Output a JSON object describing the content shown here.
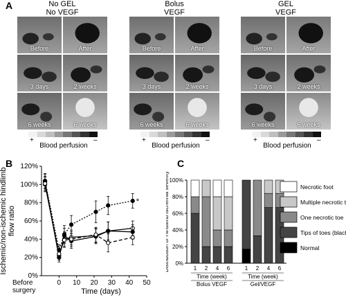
{
  "panel_a": {
    "letter": "A",
    "groups": [
      {
        "title_line1": "No GEL",
        "title_line2": "No VEGF",
        "tiles": [
          "Before",
          "After",
          "3 days",
          "2 weeks",
          "6 weeks",
          "6 weeks"
        ],
        "plus": "+",
        "minus": "–",
        "scale_label": "Blood perfusion"
      },
      {
        "title_line1": "Bolus",
        "title_line2": "VEGF",
        "tiles": [
          "Before",
          "After",
          "3 days",
          "2 weeks",
          "6 weeks",
          "6 weeks"
        ],
        "plus": "+",
        "minus": "–",
        "scale_label": "Blood perfusion"
      },
      {
        "title_line1": "GEL",
        "title_line2": "VEGF",
        "tiles": [
          "Before",
          "After",
          "3 days",
          "2 weeks",
          "6 weeks",
          "6 weeks"
        ],
        "plus": "+",
        "minus": "–",
        "scale_label": "Blood perfusion"
      }
    ],
    "scale_colors": [
      "#f2f2f2",
      "#d9d9d9",
      "#bfbfbf",
      "#9a9a9a",
      "#777777",
      "#555555",
      "#333333",
      "#111111"
    ]
  },
  "chart_data": [
    {
      "type": "line",
      "panel_letter": "B",
      "ylabel_line1": "Ischemic/non-ischemic hindlimb",
      "ylabel_line2": "flow ratio",
      "xlabel": "Time (days)",
      "x_extra_tick_line1": "Before",
      "x_extra_tick_line2": "surgery",
      "xlim": [
        -10,
        50
      ],
      "ylim": [
        0,
        120
      ],
      "x_ticks": [
        0,
        10,
        20,
        30,
        40,
        50
      ],
      "y_ticks": [
        0,
        20,
        40,
        60,
        80,
        100,
        120
      ],
      "y_tick_labels": [
        "0%",
        "20%",
        "40%",
        "60%",
        "80%",
        "100%",
        "120%"
      ],
      "star": "*",
      "series": [
        {
          "style": "dotted-filled",
          "points": [
            [
              -8,
              104
            ],
            [
              0,
              28
            ],
            [
              3,
              45
            ],
            [
              7,
              56
            ],
            [
              21,
              70
            ],
            [
              28,
              77
            ],
            [
              42,
              82
            ]
          ],
          "err": [
            8,
            6,
            10,
            10,
            12,
            10,
            8
          ]
        },
        {
          "style": "solid-open",
          "points": [
            [
              -8,
              100
            ],
            [
              0,
              22
            ],
            [
              3,
              40
            ],
            [
              7,
              42
            ],
            [
              21,
              44
            ],
            [
              28,
              49
            ],
            [
              42,
              52
            ]
          ],
          "err": [
            8,
            5,
            8,
            8,
            8,
            10,
            8
          ]
        },
        {
          "style": "solid-filled",
          "points": [
            [
              -8,
              103
            ],
            [
              0,
              20
            ],
            [
              3,
              44
            ],
            [
              7,
              38
            ],
            [
              21,
              43
            ],
            [
              28,
              49
            ],
            [
              42,
              48
            ]
          ],
          "err": [
            8,
            5,
            8,
            8,
            8,
            10,
            8
          ]
        },
        {
          "style": "dashed-open",
          "points": [
            [
              -8,
              101
            ],
            [
              0,
              24
            ],
            [
              3,
              39
            ],
            [
              7,
              40
            ],
            [
              21,
              45
            ],
            [
              28,
              36
            ],
            [
              42,
              42
            ]
          ],
          "err": [
            8,
            5,
            8,
            8,
            8,
            10,
            8
          ]
        }
      ]
    },
    {
      "type": "bar",
      "panel_letter": "C",
      "ylabel": "Distribution of Hindlimb ischemia severity",
      "ylim": [
        0,
        100
      ],
      "y_ticks": [
        0,
        20,
        40,
        60,
        80,
        100
      ],
      "y_tick_labels": [
        "0%",
        "20%",
        "40%",
        "60%",
        "80%",
        "100%"
      ],
      "groups": [
        {
          "xlabel_line1": "Time (week)",
          "xlabel_line2": "Bolus VEGF",
          "categories": [
            "1",
            "2",
            "4",
            "6"
          ]
        },
        {
          "xlabel_line1": "Time (week)",
          "xlabel_line2": "Gel/VEGF",
          "categories": [
            "1",
            "2",
            "4",
            "6"
          ]
        }
      ],
      "series": [
        {
          "name": "Normal",
          "color": "#000000",
          "values": [
            0,
            0,
            0,
            0,
            17,
            0,
            0,
            0
          ]
        },
        {
          "name": "Tips of toes (black)",
          "color": "#444444",
          "values": [
            60,
            20,
            20,
            20,
            83,
            33,
            67,
            67
          ]
        },
        {
          "name": "One necrotic toe",
          "color": "#8a8a8a",
          "values": [
            20,
            60,
            20,
            20,
            0,
            67,
            17,
            17
          ]
        },
        {
          "name": "Multiple necrotic toes",
          "color": "#c8c8c8",
          "values": [
            0,
            20,
            40,
            40,
            0,
            0,
            16,
            16
          ]
        },
        {
          "name": "Necrotic foot",
          "color": "#ffffff",
          "values": [
            20,
            0,
            20,
            20,
            0,
            0,
            0,
            0
          ]
        }
      ]
    }
  ]
}
